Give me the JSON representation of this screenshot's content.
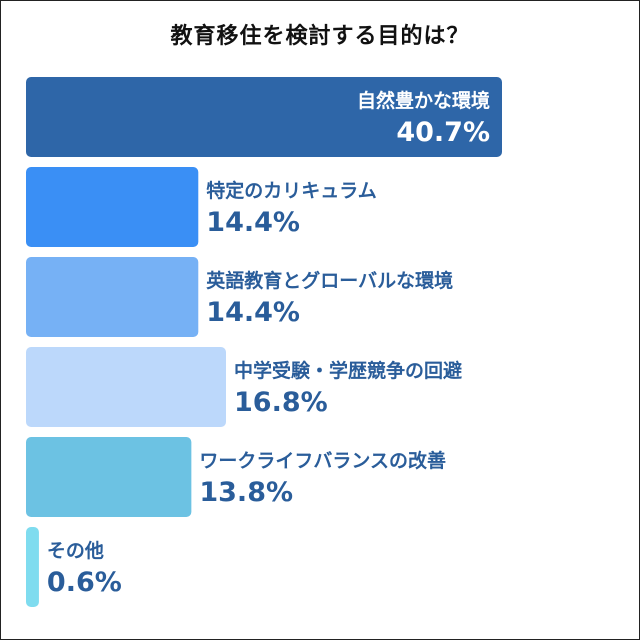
{
  "chart_data": {
    "type": "bar",
    "orientation": "horizontal",
    "title": "教育移住を検討する目的は？",
    "categories": [
      "自然豊かな環境",
      "特定のカリキュラム",
      "英語教育とグローバルな環境",
      "中学受験・学歴競争の回避",
      "ワークライフバランスの改善",
      "その他"
    ],
    "values": [
      40.7,
      14.4,
      14.4,
      16.8,
      13.8,
      0.6
    ],
    "value_labels": [
      "40.7%",
      "14.4%",
      "14.4%",
      "16.8%",
      "13.8%",
      "0.6%"
    ],
    "colors": [
      "#2e66a8",
      "#3a8ff5",
      "#76b1f5",
      "#bcd8fb",
      "#6cc2e3",
      "#7fdcef"
    ],
    "label_text_color": "#2a5d9a",
    "inside_label_color": "#ffffff",
    "xlim": [
      0,
      40.7
    ],
    "grid": false,
    "legend": "none"
  }
}
